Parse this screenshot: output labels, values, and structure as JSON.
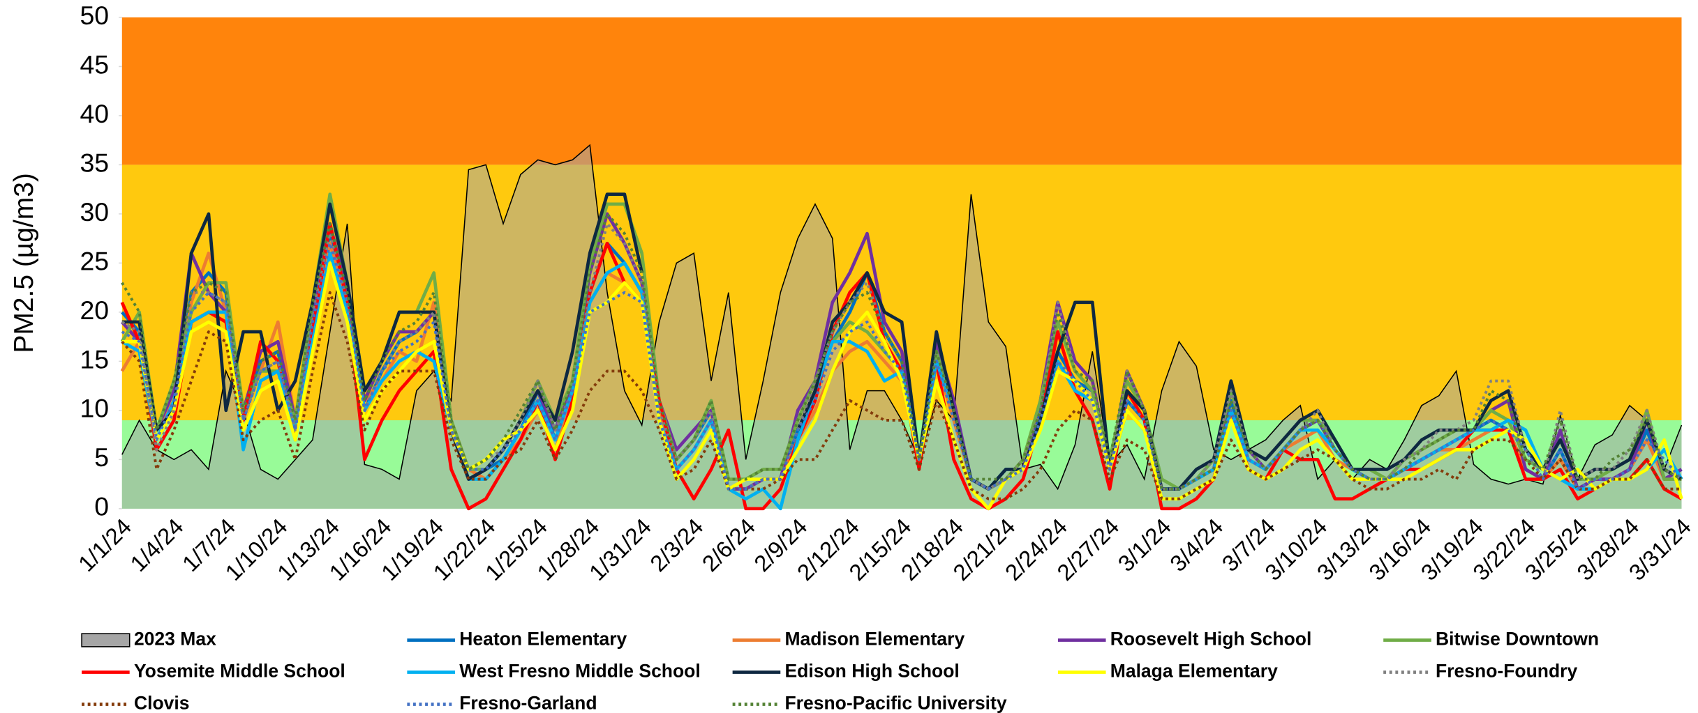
{
  "chart_data": {
    "type": "line",
    "ylabel": "PM2.5 (µg/m3)",
    "ylim": [
      0,
      50
    ],
    "yticks": [
      0,
      5,
      10,
      15,
      20,
      25,
      30,
      35,
      40,
      45,
      50
    ],
    "bands": [
      {
        "from": 0,
        "to": 9,
        "color": "#98fb98"
      },
      {
        "from": 9,
        "to": 35,
        "color": "#ffc90e"
      },
      {
        "from": 35,
        "to": 50,
        "color": "#ff840c"
      }
    ],
    "categories": [
      "1/1/24",
      null,
      null,
      "1/4/24",
      null,
      null,
      "1/7/24",
      null,
      null,
      "1/10/24",
      null,
      null,
      "1/13/24",
      null,
      null,
      "1/16/24",
      null,
      null,
      "1/19/24",
      null,
      null,
      "1/22/24",
      null,
      null,
      "1/25/24",
      null,
      null,
      "1/28/24",
      null,
      null,
      "1/31/24",
      null,
      null,
      "2/3/24",
      null,
      null,
      "2/6/24",
      null,
      null,
      "2/9/24",
      null,
      null,
      "2/12/24",
      null,
      null,
      "2/15/24",
      null,
      null,
      "2/18/24",
      null,
      null,
      "2/21/24",
      null,
      null,
      "2/24/24",
      null,
      null,
      "2/27/24",
      null,
      null,
      "3/1/24",
      null,
      null,
      "3/4/24",
      null,
      null,
      "3/7/24",
      null,
      null,
      "3/10/24",
      null,
      null,
      "3/13/24",
      null,
      null,
      "3/16/24",
      null,
      null,
      "3/19/24",
      null,
      null,
      "3/22/24",
      null,
      null,
      "3/25/24",
      null,
      null,
      "3/28/24",
      null,
      null,
      "3/31/24"
    ],
    "series": [
      {
        "name": "2023 Max",
        "color": "#a6a6a6",
        "area": true,
        "values": [
          5.5,
          9,
          6,
          5,
          6,
          4,
          14,
          10,
          4,
          3,
          5,
          7,
          18,
          29,
          4.5,
          4,
          3,
          12,
          14,
          11,
          34.5,
          35,
          29,
          34,
          35.5,
          35,
          35.5,
          37,
          22,
          12,
          8.5,
          19,
          25,
          26,
          13,
          22,
          5,
          13,
          22,
          27.5,
          31,
          27.5,
          6,
          12,
          12,
          9,
          5,
          11,
          9,
          32,
          19,
          16.5,
          4,
          4.5,
          2,
          6.5,
          16,
          4.5,
          6.5,
          3,
          12,
          17,
          14.5,
          6,
          5,
          6,
          7,
          9,
          10.5,
          3,
          5,
          3,
          5,
          4,
          7,
          10.5,
          11.5,
          14,
          4.5,
          3,
          2.5,
          3,
          2.5,
          9.5,
          3,
          6.5,
          7.5,
          10.5,
          9,
          4,
          8.5
        ]
      },
      {
        "name": "Heaton Elementary",
        "color": "#0070c0",
        "values": [
          20,
          18,
          7,
          10,
          22,
          24,
          22,
          9,
          15,
          16,
          8,
          20,
          28,
          22,
          10,
          14,
          17,
          18,
          20,
          8,
          3,
          4,
          5,
          8,
          12,
          7,
          12,
          22,
          27,
          25,
          22,
          10,
          5,
          7,
          10,
          2,
          2,
          3,
          3,
          8,
          12,
          17,
          20,
          24,
          18,
          15,
          5,
          16,
          10,
          3,
          2,
          3,
          4,
          10,
          16,
          13,
          12,
          4,
          11,
          9,
          2,
          2,
          3,
          4,
          11,
          5,
          4,
          6,
          8,
          9,
          6,
          4,
          3,
          3,
          4,
          5,
          6,
          7,
          8,
          9,
          8,
          4,
          3,
          6,
          2,
          3,
          3,
          4,
          8,
          3,
          4
        ]
      },
      {
        "name": "Madison Elementary",
        "color": "#ed7d31",
        "values": [
          14,
          17,
          8,
          11,
          21,
          26,
          20,
          10,
          14,
          19,
          9,
          19,
          27,
          21,
          11,
          13,
          16,
          15,
          21,
          9,
          4,
          3,
          5,
          7,
          10,
          6,
          11,
          21,
          24,
          23,
          21,
          10,
          4,
          6,
          9,
          2,
          2,
          3,
          3,
          7,
          10,
          14,
          16,
          17,
          15,
          13,
          5,
          15,
          9,
          3,
          2,
          3,
          4,
          9,
          15,
          12,
          11,
          4,
          10,
          8,
          2,
          2,
          3,
          4,
          10,
          5,
          4,
          6,
          7,
          8,
          5,
          4,
          3,
          3,
          4,
          5,
          6,
          6,
          7,
          8,
          8,
          4,
          3,
          5,
          2,
          3,
          3,
          4,
          7,
          3,
          3
        ]
      },
      {
        "name": "Roosevelt High School",
        "color": "#7030a0",
        "values": [
          19,
          17,
          8,
          12,
          26,
          22,
          20,
          10,
          16,
          17,
          9,
          19,
          29,
          22,
          11,
          15,
          18,
          18,
          20,
          8,
          3,
          4,
          6,
          9,
          12,
          8,
          13,
          24,
          30,
          27,
          23,
          11,
          6,
          8,
          10,
          2,
          2,
          3,
          3,
          10,
          13,
          21,
          24,
          28,
          19,
          16,
          5,
          17,
          11,
          3,
          2,
          3,
          4,
          11,
          21,
          15,
          13,
          4,
          14,
          10,
          2,
          2,
          3,
          4,
          12,
          6,
          4,
          6,
          8,
          9,
          6,
          4,
          3,
          3,
          4,
          5,
          6,
          7,
          8,
          10,
          11,
          4,
          3,
          8,
          2,
          3,
          3,
          4,
          9,
          3,
          4
        ]
      },
      {
        "name": "Bitwise Downtown",
        "color": "#70ad47",
        "values": [
          17,
          20,
          8,
          13,
          20,
          23,
          23,
          10,
          14,
          14,
          9,
          21,
          32,
          23,
          12,
          15,
          20,
          20,
          24,
          9,
          4,
          4,
          6,
          9,
          13,
          9,
          13,
          25,
          31,
          31,
          26,
          11,
          5,
          7,
          11,
          3,
          3,
          4,
          4,
          9,
          13,
          17,
          19,
          18,
          16,
          14,
          5,
          16,
          10,
          3,
          2,
          3,
          5,
          11,
          19,
          14,
          12,
          5,
          13,
          10,
          3,
          2,
          3,
          5,
          12,
          6,
          5,
          7,
          9,
          9,
          7,
          4,
          4,
          3,
          5,
          6,
          7,
          8,
          8,
          10,
          9,
          5,
          4,
          7,
          3,
          3,
          4,
          5,
          10,
          3,
          3
        ]
      },
      {
        "name": "Yosemite Middle School",
        "color": "#ff0000",
        "values": [
          21,
          17,
          6,
          9,
          19,
          20,
          19,
          9,
          17,
          15,
          7,
          18,
          29,
          21,
          5,
          9,
          12,
          14,
          16,
          4,
          0,
          1,
          4,
          7,
          11,
          5,
          11,
          22,
          27,
          23,
          21,
          11,
          4,
          1,
          4,
          8,
          0,
          0,
          2,
          7,
          11,
          18,
          22,
          24,
          17,
          14,
          4,
          15,
          5,
          1,
          0,
          1,
          3,
          9,
          18,
          12,
          9,
          2,
          12,
          9,
          0,
          0,
          1,
          3,
          10,
          4,
          3,
          6,
          5,
          5,
          1,
          1,
          2,
          3,
          4,
          4,
          5,
          6,
          8,
          8,
          8,
          3,
          3,
          4,
          1,
          2,
          3,
          3,
          5,
          2,
          1
        ]
      },
      {
        "name": "West Fresno Middle School",
        "color": "#00b0f0",
        "values": [
          17,
          16,
          7,
          11,
          19,
          20,
          20,
          6,
          13,
          14,
          8,
          17,
          26,
          20,
          10,
          13,
          15,
          16,
          15,
          8,
          3,
          3,
          5,
          8,
          11,
          7,
          12,
          21,
          24,
          25,
          22,
          9,
          4,
          6,
          9,
          2,
          1,
          2,
          0,
          7,
          12,
          17,
          17,
          16,
          13,
          14,
          5,
          15,
          10,
          3,
          2,
          4,
          4,
          9,
          15,
          12,
          11,
          4,
          10,
          8,
          2,
          2,
          3,
          4,
          10,
          5,
          4,
          6,
          8,
          8,
          6,
          4,
          3,
          3,
          4,
          5,
          6,
          7,
          8,
          8,
          9,
          8,
          4,
          3,
          2,
          2,
          3,
          3,
          4,
          6,
          3
        ]
      },
      {
        "name": "Edison High School",
        "color": "#0e2841",
        "values": [
          19,
          19,
          8,
          10,
          26,
          30,
          10,
          18,
          18,
          10,
          13,
          21,
          31,
          23,
          12,
          15,
          20,
          20,
          20,
          8,
          3,
          4,
          6,
          9,
          12,
          9,
          16,
          26,
          32,
          32,
          24,
          null,
          null,
          null,
          null,
          null,
          null,
          null,
          null,
          8,
          12,
          19,
          21,
          24,
          20,
          19,
          5,
          18,
          10,
          3,
          2,
          4,
          4,
          9,
          16,
          21,
          21,
          4,
          12,
          10,
          2,
          2,
          4,
          5,
          13,
          6,
          5,
          7,
          9,
          10,
          7,
          4,
          4,
          4,
          5,
          7,
          8,
          8,
          8,
          11,
          12,
          6,
          4,
          7,
          3,
          4,
          4,
          5,
          9,
          4,
          3
        ]
      },
      {
        "name": "Malaga Elementary",
        "color": "#ffff00",
        "values": [
          17,
          17,
          7,
          10,
          18,
          19,
          18,
          8,
          12,
          13,
          7,
          16,
          25,
          19,
          9,
          12,
          14,
          16,
          17,
          8,
          4,
          5,
          7,
          8,
          10,
          6,
          10,
          20,
          21,
          23,
          21,
          9,
          3,
          5,
          8,
          2,
          3,
          3,
          3,
          6,
          9,
          14,
          18,
          20,
          17,
          13,
          5,
          13,
          7,
          2,
          0,
          3,
          4,
          8,
          14,
          13,
          11,
          4,
          10,
          8,
          1,
          1,
          2,
          3,
          9,
          4,
          3,
          4,
          6,
          7,
          5,
          3,
          3,
          3,
          3,
          4,
          5,
          6,
          6,
          7,
          8,
          7,
          4,
          3,
          4,
          2,
          3,
          3,
          4,
          7,
          1
        ]
      },
      {
        "name": "Fresno-Foundry",
        "color": "#808080",
        "dotted": true,
        "values": [
          19,
          18,
          6,
          10,
          22,
          22,
          21,
          9,
          14,
          15,
          8,
          20,
          28,
          21,
          10,
          14,
          17,
          18,
          20,
          8,
          4,
          5,
          6,
          9,
          13,
          8,
          12,
          22,
          29,
          27,
          23,
          10,
          5,
          7,
          10,
          2,
          2,
          3,
          3,
          8,
          13,
          18,
          21,
          23,
          18,
          15,
          5,
          16,
          10,
          3,
          2,
          3,
          5,
          10,
          21,
          14,
          13,
          4,
          14,
          10,
          2,
          2,
          3,
          5,
          12,
          6,
          4,
          6,
          8,
          10,
          6,
          4,
          3,
          3,
          5,
          6,
          8,
          8,
          9,
          13,
          13,
          6,
          3,
          10,
          3,
          4,
          4,
          6,
          10,
          4,
          3
        ]
      },
      {
        "name": "Clovis",
        "color": "#843c0c",
        "dotted": true,
        "values": [
          17,
          15,
          4,
          8,
          13,
          18,
          17,
          7,
          9,
          10,
          5,
          14,
          22,
          17,
          8,
          12,
          14,
          14,
          14,
          7,
          3,
          3,
          5,
          6,
          9,
          5,
          8,
          12,
          14,
          14,
          12,
          8,
          3,
          4,
          7,
          2,
          2,
          2,
          3,
          5,
          5,
          8,
          11,
          10,
          9,
          9,
          4,
          11,
          7,
          2,
          1,
          1,
          2,
          4,
          8,
          10,
          9,
          3,
          7,
          6,
          1,
          1,
          2,
          3,
          7,
          4,
          3,
          4,
          5,
          6,
          5,
          3,
          2,
          2,
          3,
          3,
          4,
          3,
          6,
          7,
          7,
          5,
          3,
          5,
          2,
          2,
          3,
          3,
          5,
          2,
          2
        ]
      },
      {
        "name": "Fresno-Garland",
        "color": "#4472c4",
        "dotted": true,
        "values": [
          18,
          17,
          7,
          11,
          20,
          22,
          21,
          9,
          14,
          15,
          8,
          19,
          27,
          21,
          10,
          14,
          16,
          17,
          19,
          8,
          4,
          4,
          6,
          8,
          11,
          7,
          12,
          20,
          21,
          22,
          21,
          9,
          4,
          6,
          9,
          2,
          2,
          3,
          3,
          8,
          11,
          16,
          18,
          19,
          16,
          14,
          5,
          15,
          9,
          3,
          2,
          3,
          4,
          9,
          15,
          13,
          11,
          4,
          11,
          9,
          2,
          2,
          3,
          4,
          10,
          5,
          4,
          6,
          8,
          9,
          6,
          4,
          3,
          3,
          4,
          5,
          6,
          7,
          8,
          9,
          8,
          6,
          3,
          6,
          2,
          3,
          3,
          4,
          7,
          5,
          3
        ]
      },
      {
        "name": "Fresno-Pacific University",
        "color": "#548235",
        "dotted": true,
        "values": [
          23,
          20,
          8,
          13,
          22,
          23,
          22,
          10,
          15,
          16,
          9,
          21,
          29,
          22,
          11,
          15,
          18,
          19,
          22,
          9,
          4,
          5,
          7,
          10,
          13,
          8,
          13,
          24,
          30,
          28,
          24,
          11,
          5,
          7,
          11,
          3,
          3,
          4,
          4,
          9,
          13,
          18,
          21,
          22,
          18,
          15,
          5,
          16,
          10,
          3,
          3,
          3,
          5,
          10,
          20,
          14,
          13,
          5,
          14,
          10,
          2,
          2,
          3,
          4,
          11,
          6,
          4,
          6,
          8,
          9,
          6,
          4,
          3,
          3,
          4,
          6,
          7,
          8,
          8,
          12,
          11,
          5,
          4,
          9,
          3,
          3,
          5,
          6,
          9,
          4,
          3
        ]
      }
    ]
  }
}
